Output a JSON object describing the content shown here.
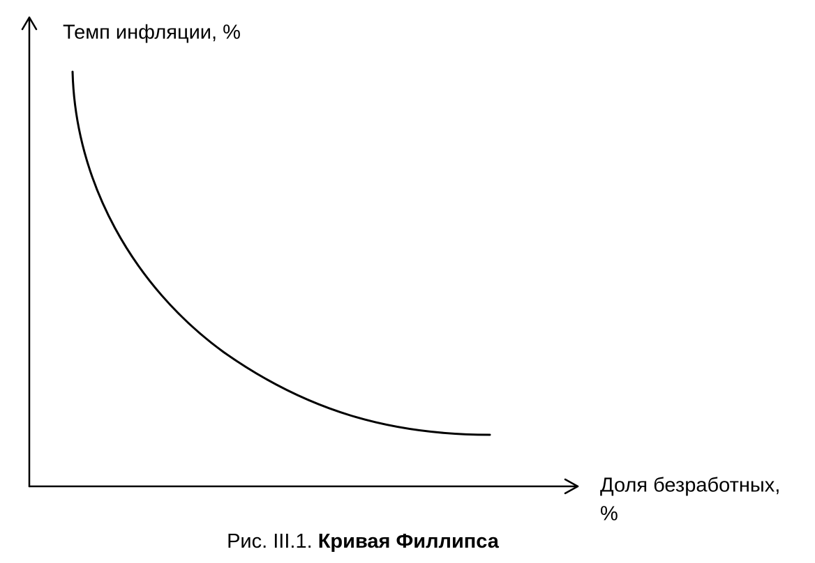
{
  "y_axis": {
    "label": "Темп инфляции, %"
  },
  "x_axis": {
    "label_lines": [
      "Доля безработных,",
      "%"
    ]
  },
  "caption": {
    "number": "Рис. III.1.",
    "title": "Кривая Филлипса"
  }
}
